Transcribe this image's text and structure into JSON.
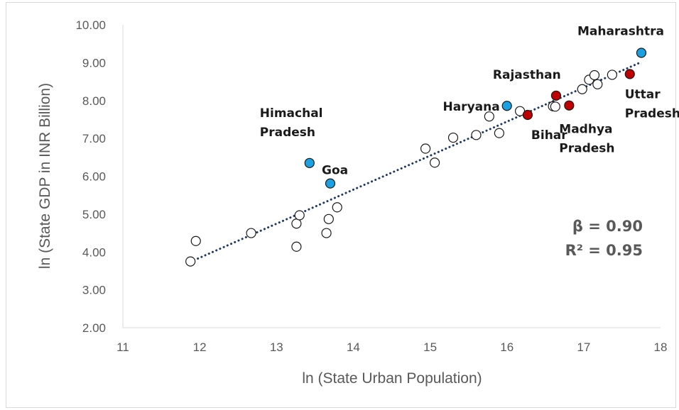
{
  "chart_data": {
    "type": "scatter",
    "title": "",
    "xlabel": "ln (State Urban Population)",
    "ylabel": "ln (State GDP in INR Billion)",
    "xlim": [
      11,
      18
    ],
    "ylim": [
      2,
      10
    ],
    "x_ticks": [
      "11",
      "12",
      "13",
      "14",
      "15",
      "16",
      "17",
      "18"
    ],
    "y_ticks": [
      "2.00",
      "3.00",
      "4.00",
      "5.00",
      "6.00",
      "7.00",
      "8.00",
      "9.00",
      "10.00"
    ],
    "grid": false,
    "legend": "none",
    "trendline": {
      "style": "dotted",
      "color": "#1f3864",
      "x": [
        11.88,
        17.72
      ],
      "y": [
        3.74,
        8.99
      ]
    },
    "statistics": {
      "beta": "β = 0.90",
      "r2": "R² = 0.95"
    },
    "colors": {
      "highlight_blue": "#1ba1e2",
      "highlight_red": "#c00000",
      "other": "#ffffff"
    },
    "points": [
      {
        "x": 11.88,
        "y": 3.75,
        "group": "other"
      },
      {
        "x": 11.95,
        "y": 4.29,
        "group": "other"
      },
      {
        "x": 12.67,
        "y": 4.5,
        "group": "other"
      },
      {
        "x": 13.26,
        "y": 4.75,
        "group": "other"
      },
      {
        "x": 13.3,
        "y": 4.97,
        "group": "other"
      },
      {
        "x": 13.26,
        "y": 4.14,
        "group": "other"
      },
      {
        "x": 13.68,
        "y": 4.87,
        "group": "other"
      },
      {
        "x": 13.65,
        "y": 4.5,
        "group": "other"
      },
      {
        "x": 13.79,
        "y": 5.18,
        "group": "other"
      },
      {
        "x": 14.94,
        "y": 6.73,
        "group": "other"
      },
      {
        "x": 15.06,
        "y": 6.36,
        "group": "other"
      },
      {
        "x": 15.3,
        "y": 7.02,
        "group": "other"
      },
      {
        "x": 15.6,
        "y": 7.09,
        "group": "other"
      },
      {
        "x": 15.77,
        "y": 7.58,
        "group": "other"
      },
      {
        "x": 15.9,
        "y": 7.14,
        "group": "other"
      },
      {
        "x": 16.17,
        "y": 7.72,
        "group": "other"
      },
      {
        "x": 16.6,
        "y": 7.85,
        "group": "other"
      },
      {
        "x": 16.63,
        "y": 7.84,
        "group": "other"
      },
      {
        "x": 16.98,
        "y": 8.3,
        "group": "other"
      },
      {
        "x": 17.07,
        "y": 8.55,
        "group": "other"
      },
      {
        "x": 17.14,
        "y": 8.67,
        "group": "other"
      },
      {
        "x": 17.18,
        "y": 8.43,
        "group": "other"
      },
      {
        "x": 17.37,
        "y": 8.68,
        "group": "other"
      },
      {
        "x": 13.43,
        "y": 6.35,
        "group": "blue",
        "label": "Himachal\nPradesh"
      },
      {
        "x": 13.7,
        "y": 5.81,
        "group": "blue",
        "label": "Goa"
      },
      {
        "x": 16.0,
        "y": 7.86,
        "group": "blue",
        "label": "Haryana"
      },
      {
        "x": 17.75,
        "y": 9.26,
        "group": "blue",
        "label": "Maharashtra"
      },
      {
        "x": 16.64,
        "y": 8.13,
        "group": "red",
        "label": "Rajasthan"
      },
      {
        "x": 16.27,
        "y": 7.62,
        "group": "red",
        "label": "Bihar"
      },
      {
        "x": 16.81,
        "y": 7.87,
        "group": "red",
        "label": "Madhya\nPradesh"
      },
      {
        "x": 17.6,
        "y": 8.7,
        "group": "red",
        "label": "Uttar\nPradesh"
      }
    ]
  }
}
